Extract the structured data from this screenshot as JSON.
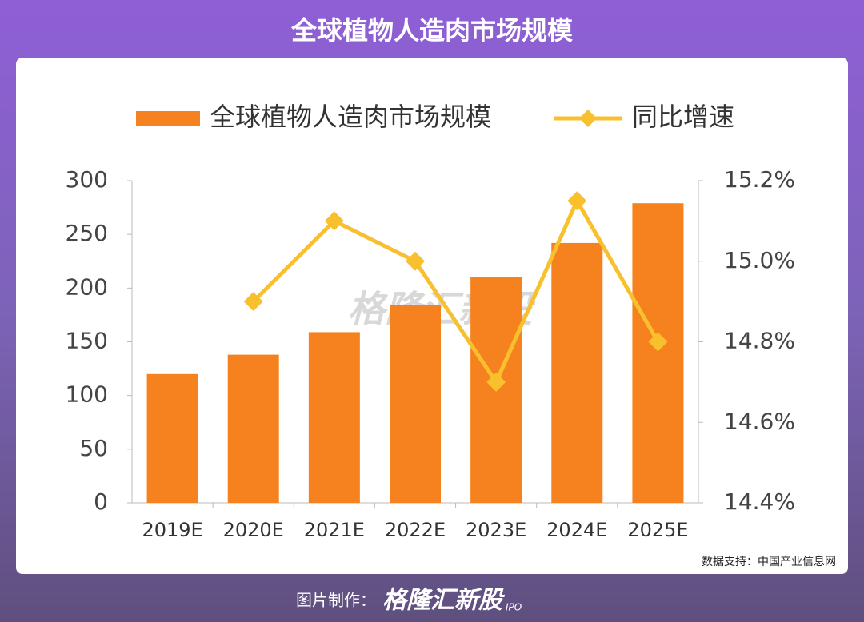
{
  "header": {
    "title": "全球植物人造肉市场规模"
  },
  "chart_data": {
    "type": "bar_line",
    "categories": [
      "2019E",
      "2020E",
      "2021E",
      "2022E",
      "2023E",
      "2024E",
      "2025E"
    ],
    "series": [
      {
        "name": "全球植物人造肉市场规模",
        "type": "bar",
        "color": "#f5821f",
        "values": [
          120,
          138,
          159,
          184,
          210,
          242,
          279
        ]
      },
      {
        "name": "同比增速",
        "type": "line",
        "axis": "y2",
        "color": "#f9c02d",
        "values": [
          null,
          14.9,
          15.1,
          15.0,
          14.7,
          15.15,
          14.8
        ]
      }
    ],
    "ylim": [
      0,
      300
    ],
    "yticks": [
      0,
      50,
      100,
      150,
      200,
      250,
      300
    ],
    "y2lim": [
      14.4,
      15.2
    ],
    "y2ticks": [
      {
        "value": 14.4,
        "label": "14.4%"
      },
      {
        "value": 14.6,
        "label": "14.6%"
      },
      {
        "value": 14.8,
        "label": "14.8%"
      },
      {
        "value": 15.0,
        "label": "15.0%"
      },
      {
        "value": 15.2,
        "label": "15.2%"
      }
    ],
    "grid": false,
    "legend": "top",
    "watermark": "格隆汇新股",
    "source": "数据支持：中国产业信息网"
  },
  "footer": {
    "credit_label": "图片制作：",
    "credit_logo": "格隆汇新股",
    "logo_suffix": "IPO"
  }
}
